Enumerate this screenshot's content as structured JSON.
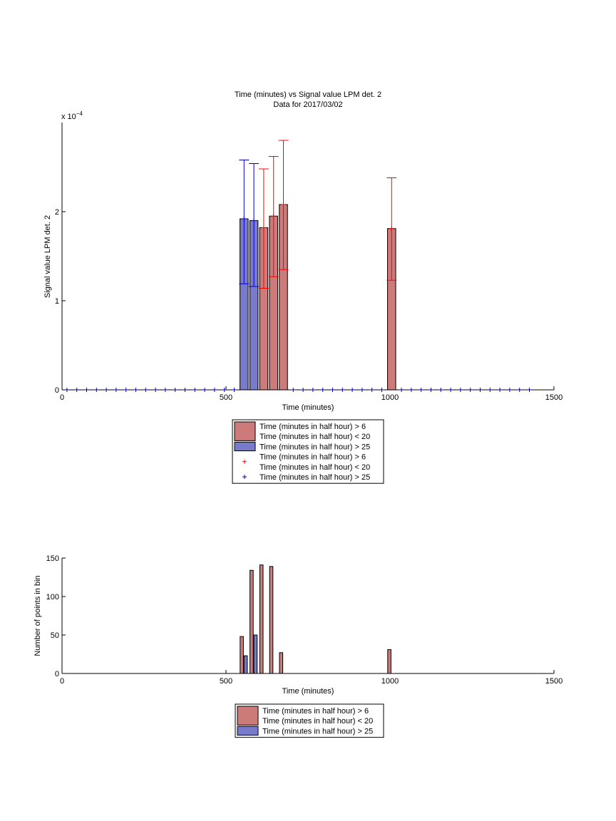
{
  "colors": {
    "red_bar": "#cc7a7a",
    "blue_bar": "#7a7acc",
    "red_err": "#ff0000",
    "blue_err": "#0000cc",
    "blue_marker": "#0000aa",
    "axis": "#000000"
  },
  "chart_data": [
    {
      "type": "bar",
      "title": "Time (minutes) vs Signal value LPM det. 2",
      "subtitle": "Data for 2017/03/02",
      "xlabel": "Time (minutes)",
      "ylabel": "Signal value LPM det. 2",
      "exponent_label": "x 10",
      "exponent_power": "−4",
      "xlim": [
        0,
        1500
      ],
      "ylim": [
        0,
        3
      ],
      "y_scale_factor": 0.0001,
      "xticks": [
        0,
        500,
        1000,
        1500
      ],
      "yticks": [
        0,
        1,
        2
      ],
      "grid": false,
      "legend_position": "below",
      "legend": [
        {
          "kind": "bar",
          "color": "red",
          "lines": [
            "Time (minutes in half hour) > 6",
            "Time (minutes in half hour) < 20"
          ]
        },
        {
          "kind": "bar",
          "color": "blue",
          "lines": [
            "Time (minutes in half hour) > 25"
          ]
        },
        {
          "kind": "marker",
          "color": "red",
          "lines": [
            "Time (minutes in half hour) > 6",
            "Time (minutes in half hour) < 20"
          ]
        },
        {
          "kind": "marker",
          "color": "blue",
          "lines": [
            "Time (minutes in half hour) > 25"
          ]
        }
      ],
      "series": [
        {
          "color": "blue",
          "bar_width": 25,
          "points": [
            {
              "x": 555,
              "y": 1.92,
              "err_low": 1.19,
              "err_high": 2.58
            },
            {
              "x": 585,
              "y": 1.9,
              "err_low": 1.16,
              "err_high": 2.54
            }
          ]
        },
        {
          "color": "red",
          "bar_width": 25,
          "points": [
            {
              "x": 615,
              "y": 1.82,
              "err_low": 1.14,
              "err_high": 2.48
            },
            {
              "x": 645,
              "y": 1.95,
              "err_low": 1.27,
              "err_high": 2.62
            },
            {
              "x": 675,
              "y": 2.08,
              "err_low": 1.35,
              "err_high": 2.8
            },
            {
              "x": 1005,
              "y": 1.81,
              "err_low": 1.23,
              "err_high": 2.38
            }
          ]
        }
      ],
      "zero_marker_x": [
        15,
        45,
        75,
        105,
        135,
        165,
        195,
        225,
        255,
        285,
        315,
        345,
        375,
        405,
        435,
        465,
        495,
        525,
        705,
        735,
        765,
        795,
        825,
        855,
        885,
        915,
        945,
        975,
        1035,
        1065,
        1095,
        1125,
        1155,
        1185,
        1215,
        1245,
        1275,
        1305,
        1335,
        1365,
        1395,
        1425
      ]
    },
    {
      "type": "bar",
      "xlabel": "Time (minutes)",
      "ylabel": "Number of points in bin",
      "xlim": [
        0,
        1500
      ],
      "ylim": [
        0,
        150
      ],
      "xticks": [
        0,
        500,
        1000,
        1500
      ],
      "yticks": [
        0,
        50,
        100,
        150
      ],
      "grid": false,
      "legend_position": "below",
      "legend": [
        {
          "kind": "bar",
          "color": "red",
          "lines": [
            "Time (minutes in half hour) > 6",
            "Time (minutes in half hour) < 20"
          ]
        },
        {
          "kind": "bar",
          "color": "blue",
          "lines": [
            "Time (minutes in half hour) > 25"
          ]
        }
      ],
      "series": [
        {
          "color": "red",
          "bar_width": 10,
          "points": [
            {
              "x": 548,
              "y": 48
            },
            {
              "x": 578,
              "y": 134
            },
            {
              "x": 608,
              "y": 141
            },
            {
              "x": 638,
              "y": 139
            },
            {
              "x": 668,
              "y": 27
            },
            {
              "x": 998,
              "y": 31
            }
          ]
        },
        {
          "color": "blue",
          "bar_width": 10,
          "points": [
            {
              "x": 560,
              "y": 23
            },
            {
              "x": 590,
              "y": 50
            }
          ]
        }
      ]
    }
  ]
}
